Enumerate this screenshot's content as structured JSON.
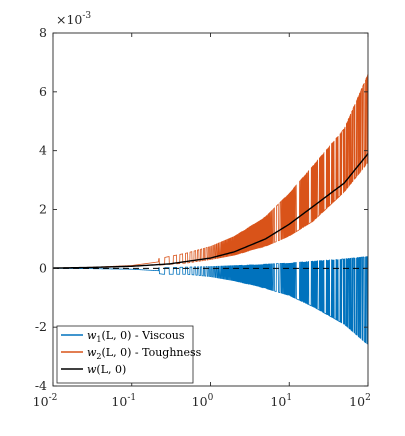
{
  "chart_data": {
    "type": "line",
    "title": "",
    "xlabel": "",
    "ylabel": "",
    "x_scale": "log",
    "xlim": [
      0.01,
      100
    ],
    "ylim": [
      -0.004,
      0.008
    ],
    "y_multiplier_label": {
      "base": "×10",
      "exponent": "-3"
    },
    "x_ticks": [
      {
        "value": 0.01,
        "base": "10",
        "exp": "-2"
      },
      {
        "value": 0.1,
        "base": "10",
        "exp": "-1"
      },
      {
        "value": 1,
        "base": "10",
        "exp": "0"
      },
      {
        "value": 10,
        "base": "10",
        "exp": "1"
      },
      {
        "value": 100,
        "base": "10",
        "exp": "2"
      }
    ],
    "y_ticks": [
      {
        "value": -0.004,
        "label": "-4"
      },
      {
        "value": -0.002,
        "label": "-2"
      },
      {
        "value": 0,
        "label": "0"
      },
      {
        "value": 0.002,
        "label": "2"
      },
      {
        "value": 0.004,
        "label": "4"
      },
      {
        "value": 0.006,
        "label": "6"
      },
      {
        "value": 0.008,
        "label": "8"
      }
    ],
    "grid": false,
    "legend_position": "bottom-left",
    "zero_reference_line": {
      "y": 0,
      "style": "dashed",
      "color": "#000000"
    },
    "series": [
      {
        "name": "w1(L,0) - Viscous",
        "label_parts": {
          "fn": "w",
          "sub": "1",
          "args": "(L, 0) - Viscous"
        },
        "color": "#0072BD",
        "kind": "oscillating-band",
        "x": [
          0.01,
          0.03,
          0.1,
          0.25,
          0.5,
          1,
          2,
          5,
          10,
          20,
          50,
          100
        ],
        "upper": [
          0,
          0,
          0,
          2e-05,
          4e-05,
          6e-05,
          9e-05,
          0.00014,
          0.00018,
          0.00024,
          0.00032,
          0.0004
        ],
        "lower": [
          0,
          -2e-05,
          -6e-05,
          -0.0002,
          -0.0002,
          -0.00028,
          -0.00042,
          -0.00068,
          -0.00092,
          -0.0013,
          -0.0019,
          -0.0026
        ]
      },
      {
        "name": "w2(L,0) - Toughness",
        "label_parts": {
          "fn": "w",
          "sub": "2",
          "args": "(L, 0) - Toughness"
        },
        "color": "#D95319",
        "kind": "oscillating-band",
        "x": [
          0.01,
          0.03,
          0.1,
          0.25,
          0.5,
          1,
          2,
          5,
          10,
          20,
          50,
          100
        ],
        "upper": [
          1e-05,
          4e-05,
          0.00012,
          0.00036,
          0.00052,
          0.00074,
          0.00108,
          0.00175,
          0.00255,
          0.00348,
          0.00475,
          0.0066
        ],
        "lower": [
          1e-05,
          3e-05,
          7e-05,
          0.00012,
          0.00018,
          0.0003,
          0.00045,
          0.00075,
          0.0011,
          0.0016,
          0.0026,
          0.0036
        ]
      },
      {
        "name": "w(L,0)",
        "label_parts": {
          "fn": "w",
          "sub": "",
          "args": "(L, 0)"
        },
        "color": "#000000",
        "kind": "line",
        "x": [
          0.01,
          0.03,
          0.1,
          0.3,
          1,
          2,
          5,
          10,
          20,
          50,
          100
        ],
        "y": [
          1e-05,
          3e-05,
          7e-05,
          0.00015,
          0.00035,
          0.00056,
          0.001,
          0.0015,
          0.0021,
          0.0029,
          0.0039
        ]
      }
    ]
  }
}
